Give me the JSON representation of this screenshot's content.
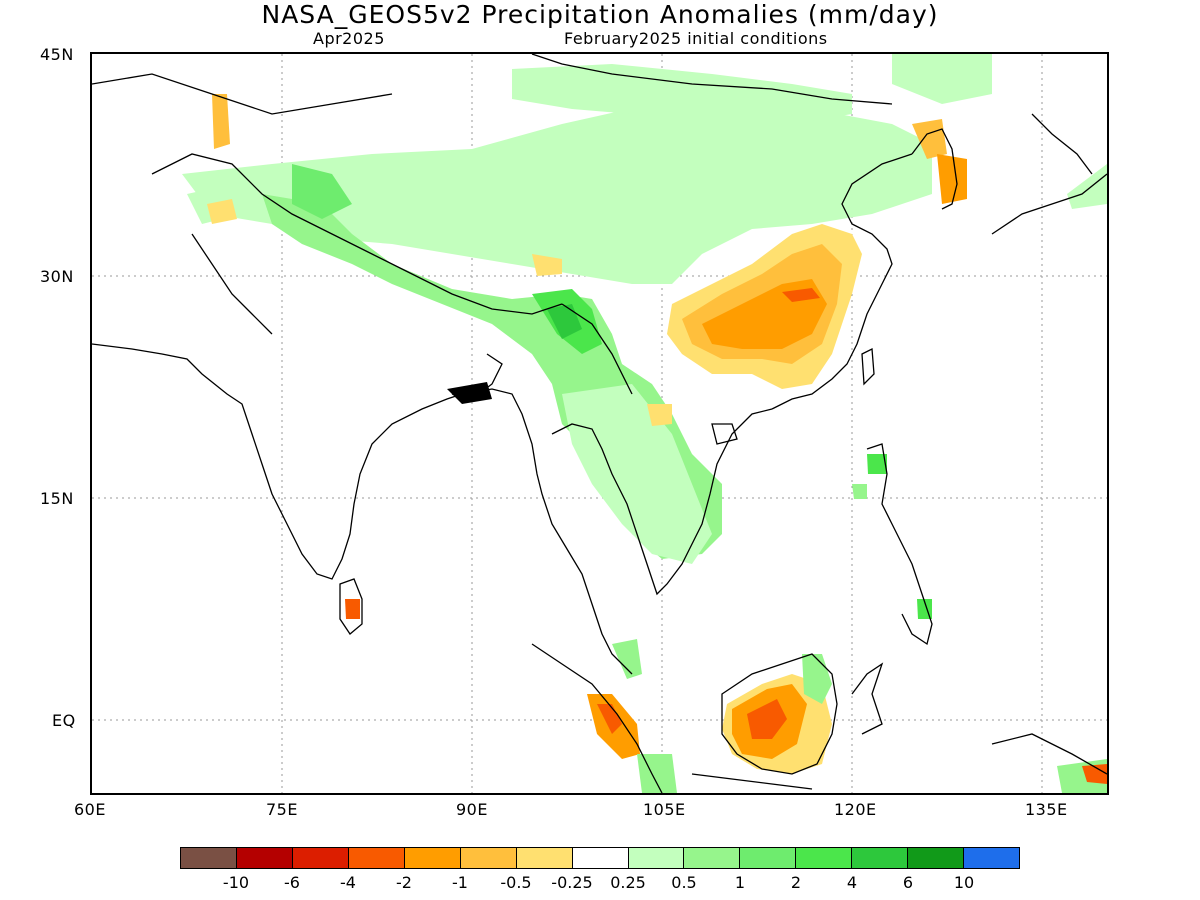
{
  "title": "NASA_GEOS5v2 Precipitation Anomalies (mm/day)",
  "subtitle_left": "Apr2025",
  "subtitle_right": "February2025 initial conditions",
  "map": {
    "lat_labels": [
      "45N",
      "30N",
      "15N",
      "EQ"
    ],
    "lon_labels": [
      "60E",
      "75E",
      "90E",
      "105E",
      "120E",
      "135E"
    ],
    "extent": {
      "lon_min": 60,
      "lon_max": 140,
      "lat_min": -5,
      "lat_max": 45
    }
  },
  "colorbar": {
    "colors": [
      "#7a5044",
      "#b40000",
      "#dc1e00",
      "#f85a00",
      "#ff9d00",
      "#ffbf3c",
      "#ffe070",
      "#ffffff",
      "#c3ffbe",
      "#96f58c",
      "#6eec6e",
      "#4be64b",
      "#2dc83c",
      "#119a19",
      "#1e6eeb"
    ],
    "tick_labels": [
      "-10",
      "-6",
      "-4",
      "-2",
      "-1",
      "-0.5",
      "-0.25",
      "0.25",
      "0.5",
      "1",
      "2",
      "4",
      "6",
      "10"
    ]
  }
}
